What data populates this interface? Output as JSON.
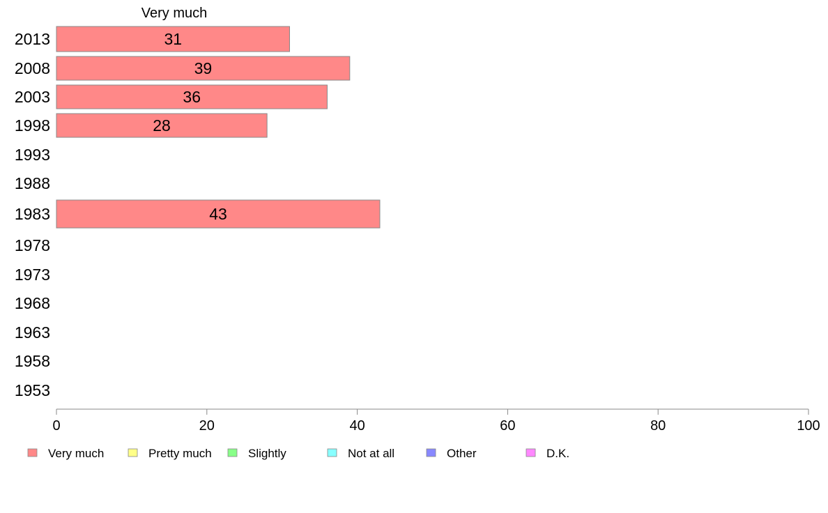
{
  "chart_data": {
    "type": "bar",
    "orientation": "horizontal",
    "series_header": "Very much",
    "categories": [
      "2013",
      "2008",
      "2003",
      "1998",
      "1993",
      "1988",
      "1983",
      "1978",
      "1973",
      "1968",
      "1963",
      "1958",
      "1953"
    ],
    "series": [
      {
        "name": "Very much",
        "values": [
          31,
          39,
          36,
          28,
          null,
          null,
          43,
          null,
          null,
          null,
          null,
          null,
          null
        ]
      }
    ],
    "xlim": [
      0,
      100
    ],
    "xticks": [
      0,
      20,
      40,
      60,
      80,
      100
    ],
    "grid": false,
    "legend_position": "bottom",
    "legend": [
      {
        "label": "Very much",
        "color": "#ff8888"
      },
      {
        "label": "Pretty much",
        "color": "#ffff88"
      },
      {
        "label": "Slightly",
        "color": "#88ff88"
      },
      {
        "label": "Not at all",
        "color": "#88ffff"
      },
      {
        "label": "Other",
        "color": "#8888ff"
      },
      {
        "label": "D.K.",
        "color": "#ff88ff"
      }
    ],
    "colors": {
      "bar_fill": "#ff8888",
      "bar_stroke": "#888888",
      "axis": "#888888"
    }
  }
}
